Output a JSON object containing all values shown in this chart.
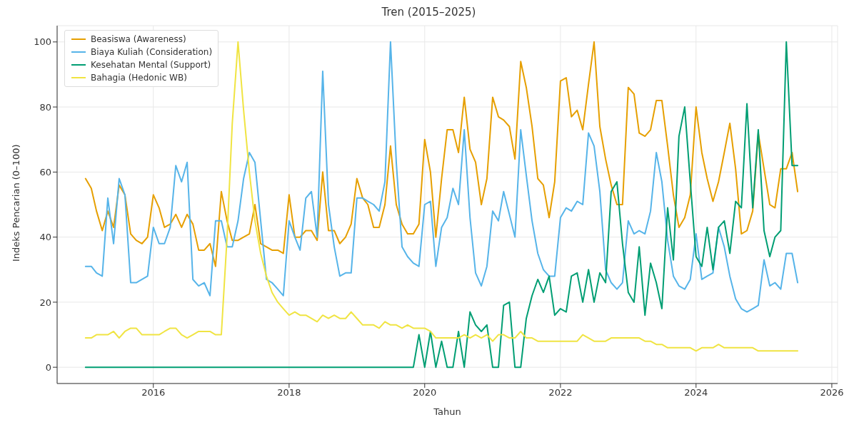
{
  "chart_data": {
    "type": "line",
    "title": "Tren (2015–2025)",
    "xlabel": "Tahun",
    "ylabel": "Indeks Pencarian (0–100)",
    "x": [
      "2015-01",
      "2015-02",
      "2015-03",
      "2015-04",
      "2015-05",
      "2015-06",
      "2015-07",
      "2015-08",
      "2015-09",
      "2015-10",
      "2015-11",
      "2015-12",
      "2016-01",
      "2016-02",
      "2016-03",
      "2016-04",
      "2016-05",
      "2016-06",
      "2016-07",
      "2016-08",
      "2016-09",
      "2016-10",
      "2016-11",
      "2016-12",
      "2017-01",
      "2017-02",
      "2017-03",
      "2017-04",
      "2017-05",
      "2017-06",
      "2017-07",
      "2017-08",
      "2017-09",
      "2017-10",
      "2017-11",
      "2017-12",
      "2018-01",
      "2018-02",
      "2018-03",
      "2018-04",
      "2018-05",
      "2018-06",
      "2018-07",
      "2018-08",
      "2018-09",
      "2018-10",
      "2018-11",
      "2018-12",
      "2019-01",
      "2019-02",
      "2019-03",
      "2019-04",
      "2019-05",
      "2019-06",
      "2019-07",
      "2019-08",
      "2019-09",
      "2019-10",
      "2019-11",
      "2019-12",
      "2020-01",
      "2020-02",
      "2020-03",
      "2020-04",
      "2020-05",
      "2020-06",
      "2020-07",
      "2020-08",
      "2020-09",
      "2020-10",
      "2020-11",
      "2020-12",
      "2021-01",
      "2021-02",
      "2021-03",
      "2021-04",
      "2021-05",
      "2021-06",
      "2021-07",
      "2021-08",
      "2021-09",
      "2021-10",
      "2021-11",
      "2021-12",
      "2022-01",
      "2022-02",
      "2022-03",
      "2022-04",
      "2022-05",
      "2022-06",
      "2022-07",
      "2022-08",
      "2022-09",
      "2022-10",
      "2022-11",
      "2022-12",
      "2023-01",
      "2023-02",
      "2023-03",
      "2023-04",
      "2023-05",
      "2023-06",
      "2023-07",
      "2023-08",
      "2023-09",
      "2023-10",
      "2023-11",
      "2023-12",
      "2024-01",
      "2024-02",
      "2024-03",
      "2024-04",
      "2024-05",
      "2024-06",
      "2024-07",
      "2024-08",
      "2024-09",
      "2024-10",
      "2024-11",
      "2024-12",
      "2025-01",
      "2025-02",
      "2025-03",
      "2025-04",
      "2025-05",
      "2025-06",
      "2025-07"
    ],
    "series": [
      {
        "name": "Beasiswa (Awareness)",
        "color": "#e69f00",
        "values": [
          58,
          55,
          48,
          42,
          48,
          43,
          56,
          53,
          41,
          39,
          38,
          40,
          53,
          49,
          43,
          44,
          47,
          43,
          47,
          44,
          36,
          36,
          38,
          31,
          54,
          45,
          39,
          39,
          40,
          41,
          50,
          38,
          37,
          36,
          36,
          35,
          53,
          40,
          40,
          42,
          42,
          39,
          60,
          42,
          42,
          38,
          40,
          44,
          58,
          52,
          50,
          43,
          43,
          50,
          68,
          50,
          44,
          41,
          41,
          44,
          70,
          60,
          40,
          58,
          73,
          73,
          66,
          83,
          67,
          63,
          50,
          58,
          83,
          77,
          76,
          74,
          64,
          94,
          86,
          74,
          58,
          56,
          46,
          57,
          88,
          89,
          77,
          79,
          73,
          87,
          100,
          74,
          64,
          56,
          50,
          50,
          86,
          84,
          72,
          71,
          73,
          82,
          82,
          68,
          53,
          43,
          46,
          53,
          80,
          66,
          58,
          51,
          57,
          66,
          75,
          61,
          41,
          42,
          48,
          72,
          61,
          50,
          49,
          61,
          61,
          66,
          54
        ]
      },
      {
        "name": "Biaya Kuliah (Consideration)",
        "color": "#56b4e9",
        "values": [
          31,
          31,
          29,
          28,
          52,
          38,
          58,
          53,
          26,
          26,
          27,
          28,
          43,
          38,
          38,
          43,
          62,
          57,
          63,
          27,
          25,
          26,
          22,
          45,
          45,
          37,
          37,
          45,
          58,
          66,
          63,
          45,
          27,
          26,
          24,
          22,
          45,
          40,
          36,
          52,
          54,
          40,
          91,
          50,
          37,
          28,
          29,
          29,
          52,
          52,
          51,
          50,
          48,
          57,
          100,
          63,
          37,
          34,
          32,
          31,
          50,
          51,
          31,
          43,
          46,
          55,
          50,
          73,
          46,
          29,
          25,
          31,
          48,
          45,
          54,
          47,
          40,
          73,
          59,
          45,
          35,
          30,
          28,
          28,
          46,
          49,
          48,
          51,
          50,
          72,
          68,
          54,
          30,
          26,
          24,
          26,
          45,
          41,
          42,
          41,
          48,
          66,
          57,
          39,
          28,
          25,
          24,
          27,
          41,
          27,
          28,
          29,
          43,
          37,
          28,
          21,
          18,
          17,
          18,
          19,
          33,
          25,
          26,
          24,
          35,
          35,
          26
        ]
      },
      {
        "name": "Kesehatan Mental (Support)",
        "color": "#009e73",
        "values": [
          0,
          0,
          0,
          0,
          0,
          0,
          0,
          0,
          0,
          0,
          0,
          0,
          0,
          0,
          0,
          0,
          0,
          0,
          0,
          0,
          0,
          0,
          0,
          0,
          0,
          0,
          0,
          0,
          0,
          0,
          0,
          0,
          0,
          0,
          0,
          0,
          0,
          0,
          0,
          0,
          0,
          0,
          0,
          0,
          0,
          0,
          0,
          0,
          0,
          0,
          0,
          0,
          0,
          0,
          0,
          0,
          0,
          0,
          0,
          10,
          0,
          11,
          0,
          8,
          0,
          0,
          11,
          0,
          17,
          13,
          11,
          13,
          0,
          0,
          19,
          20,
          0,
          0,
          15,
          22,
          27,
          23,
          28,
          16,
          18,
          17,
          28,
          29,
          20,
          30,
          20,
          29,
          26,
          54,
          57,
          38,
          23,
          20,
          37,
          16,
          32,
          26,
          18,
          49,
          33,
          71,
          80,
          57,
          34,
          31,
          43,
          30,
          43,
          45,
          35,
          51,
          49,
          81,
          49,
          73,
          42,
          34,
          40,
          42,
          100,
          62,
          62
        ]
      },
      {
        "name": "Bahagia (Hedonic WB)",
        "color": "#f0e442",
        "values": [
          9,
          9,
          10,
          10,
          10,
          11,
          9,
          11,
          12,
          12,
          10,
          10,
          10,
          10,
          11,
          12,
          12,
          10,
          9,
          10,
          11,
          11,
          11,
          10,
          10,
          40,
          75,
          100,
          79,
          60,
          45,
          35,
          28,
          23,
          20,
          18,
          16,
          17,
          16,
          16,
          15,
          14,
          16,
          15,
          16,
          15,
          15,
          17,
          15,
          13,
          13,
          13,
          12,
          14,
          13,
          13,
          12,
          13,
          12,
          12,
          12,
          11,
          9,
          9,
          9,
          9,
          9,
          10,
          9,
          10,
          9,
          10,
          8,
          10,
          10,
          9,
          9,
          11,
          9,
          9,
          8,
          8,
          8,
          8,
          8,
          8,
          8,
          8,
          10,
          9,
          8,
          8,
          8,
          9,
          9,
          9,
          9,
          9,
          9,
          8,
          8,
          7,
          7,
          6,
          6,
          6,
          6,
          6,
          5,
          6,
          6,
          6,
          7,
          6,
          6,
          6,
          6,
          6,
          6,
          5,
          5,
          5,
          5,
          5,
          5,
          5,
          5
        ]
      }
    ],
    "xlim": [
      "2014-08",
      "2026-02"
    ],
    "xticks": [
      "2016",
      "2018",
      "2020",
      "2022",
      "2024",
      "2026"
    ],
    "ylim": [
      -5,
      105
    ],
    "yticks": [
      0,
      20,
      40,
      60,
      80,
      100
    ],
    "grid": true,
    "legend": "top left"
  }
}
